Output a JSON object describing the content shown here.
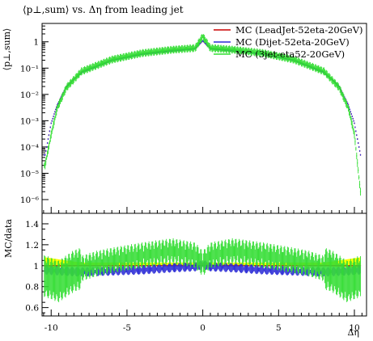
{
  "chart_data": [
    {
      "type": "scatter",
      "title": "⟨p⊥,sum⟩ vs. Δη from leading jet",
      "xlabel": "Δη",
      "ylabel": "⟨p⊥,sum⟩",
      "xlim": [
        -10.6,
        10.8
      ],
      "ylim": [
        3e-07,
        5
      ],
      "yscale": "log",
      "grid": false,
      "legend_position": "top-right",
      "legend": [
        {
          "name": "MC (LeadJet-52eta-20GeV)",
          "color": "#cc0000"
        },
        {
          "name": "MC (Dijet-52eta-20GeV)",
          "color": "#2b2bd6"
        },
        {
          "name": "MC (3jet-eta52-20GeV)",
          "color": "#33dd33"
        }
      ],
      "yticks": [
        "1",
        "10⁻¹",
        "10⁻²",
        "10⁻³",
        "10⁻⁴",
        "10⁻⁵",
        "10⁻⁶"
      ],
      "series": [
        {
          "name": "MC (LeadJet-52eta-20GeV)",
          "x": [
            -10.4,
            -10.0,
            -9.6,
            -9.0,
            -8.0,
            -6.0,
            -4.0,
            -2.0,
            -0.5,
            0.0,
            0.5,
            2.0,
            4.0,
            6.0,
            8.0,
            9.0,
            9.6,
            10.0,
            10.4
          ],
          "y": [
            5e-05,
            0.0008,
            0.004,
            0.02,
            0.07,
            0.2,
            0.35,
            0.45,
            0.55,
            1.1,
            0.55,
            0.45,
            0.35,
            0.2,
            0.07,
            0.02,
            0.004,
            0.0008,
            5e-05
          ]
        },
        {
          "name": "MC (Dijet-52eta-20GeV)",
          "x": [
            -10.4,
            -10.0,
            -9.6,
            -9.0,
            -8.0,
            -6.0,
            -4.0,
            -2.0,
            -0.5,
            0.0,
            0.5,
            2.0,
            4.0,
            6.0,
            8.0,
            9.0,
            9.6,
            10.0,
            10.4
          ],
          "y": [
            5e-05,
            0.0008,
            0.004,
            0.02,
            0.068,
            0.2,
            0.34,
            0.45,
            0.55,
            1.1,
            0.55,
            0.45,
            0.34,
            0.2,
            0.068,
            0.02,
            0.004,
            0.0008,
            5e-05
          ]
        },
        {
          "name": "MC (3jet-eta52-20GeV)",
          "x": [
            -10.4,
            -10.0,
            -9.6,
            -9.0,
            -8.0,
            -6.0,
            -4.0,
            -2.0,
            -0.5,
            0.0,
            0.5,
            2.0,
            4.0,
            6.0,
            8.0,
            9.0,
            9.6,
            10.0,
            10.4
          ],
          "y": [
            2e-05,
            0.0003,
            0.003,
            0.018,
            0.075,
            0.21,
            0.37,
            0.5,
            0.58,
            1.6,
            0.58,
            0.5,
            0.37,
            0.21,
            0.075,
            0.018,
            0.003,
            0.0003,
            2e-06
          ]
        }
      ]
    },
    {
      "type": "scatter",
      "title": "",
      "xlabel": "Δη",
      "ylabel": "MC/data",
      "xlim": [
        -10.6,
        10.8
      ],
      "ylim": [
        0.52,
        1.5
      ],
      "grid": false,
      "xticks": [
        "-10",
        "-5",
        "0",
        "5",
        "10"
      ],
      "xtick_values": [
        -10,
        -5,
        0,
        5,
        10
      ],
      "yticks": [
        "1.4",
        "1.2",
        "1",
        "0.8",
        "0.6"
      ],
      "ytick_values": [
        1.4,
        1.2,
        1.0,
        0.8,
        0.6
      ],
      "reference_band": {
        "color": "#ffff00",
        "x": [
          -10.4,
          -9.0,
          -8.0,
          0.0,
          8.0,
          9.0,
          10.4
        ],
        "lower": [
          0.98,
          0.99,
          0.995,
          0.995,
          0.995,
          0.99,
          0.98
        ],
        "upper": [
          1.08,
          1.05,
          1.03,
          1.03,
          1.03,
          1.05,
          1.08
        ]
      },
      "series": [
        {
          "name": "MC (LeadJet-52eta-20GeV)",
          "x": [
            -10.4,
            -9.5,
            -8.0,
            -6.0,
            -4.0,
            -2.0,
            0.0,
            2.0,
            4.0,
            6.0,
            8.0,
            9.5,
            10.4
          ],
          "y": [
            1.0,
            1.0,
            1.0,
            1.0,
            1.0,
            1.0,
            1.0,
            1.0,
            1.0,
            1.0,
            1.0,
            1.0,
            1.0
          ]
        },
        {
          "name": "MC (Dijet-52eta-20GeV)",
          "x": [
            -10.4,
            -9.5,
            -8.0,
            -6.0,
            -4.0,
            -2.0,
            -0.5,
            0.0,
            0.5,
            2.0,
            4.0,
            6.0,
            8.0,
            9.5,
            10.4
          ],
          "y": [
            0.96,
            0.95,
            0.94,
            0.95,
            0.96,
            0.98,
            0.99,
            1.01,
            0.99,
            0.98,
            0.96,
            0.95,
            0.94,
            0.95,
            0.96
          ]
        },
        {
          "name": "MC (3jet-eta52-20GeV)",
          "x": [
            -10.4,
            -9.5,
            -8.5,
            -7.0,
            -6.0,
            -4.0,
            -2.0,
            -0.5,
            0.0,
            0.5,
            2.0,
            4.0,
            6.0,
            7.0,
            8.5,
            9.5,
            10.4
          ],
          "y": [
            0.9,
            0.85,
            0.95,
            1.02,
            1.05,
            1.1,
            1.14,
            1.1,
            1.02,
            1.1,
            1.14,
            1.1,
            1.05,
            1.02,
            0.95,
            0.85,
            0.9
          ]
        }
      ]
    }
  ]
}
